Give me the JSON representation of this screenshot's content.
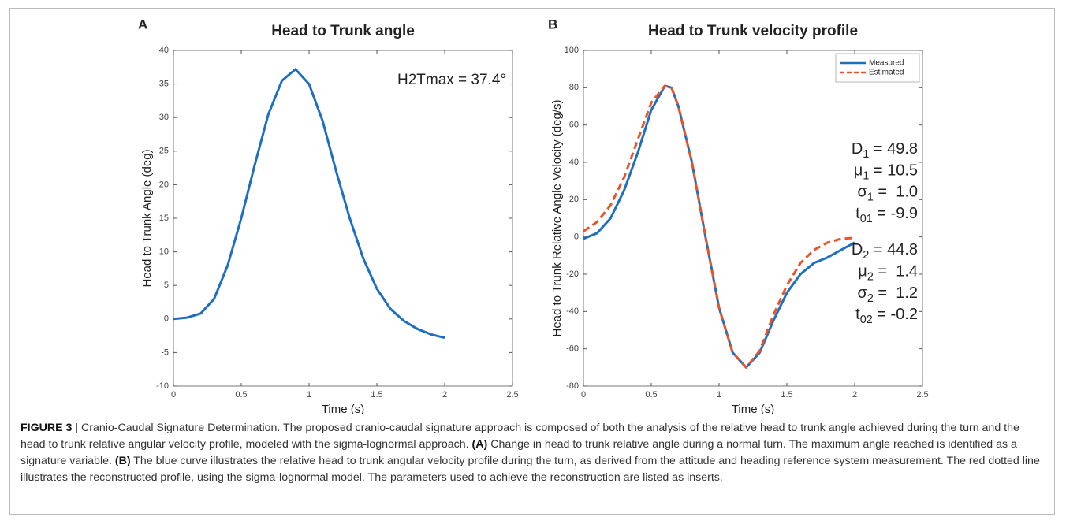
{
  "chart_data": [
    {
      "type": "line",
      "panel": "A",
      "title": "Head to Trunk angle",
      "xlabel": "Time (s)",
      "ylabel": "Head to Trunk Angle (deg)",
      "xlim": [
        0,
        2.5
      ],
      "xticks": [
        0,
        0.5,
        1,
        1.5,
        2,
        2.5
      ],
      "ylim": [
        -10,
        40
      ],
      "yticks": [
        -10,
        -5,
        0,
        5,
        10,
        15,
        20,
        25,
        30,
        35,
        40
      ],
      "x": [
        0,
        0.1,
        0.2,
        0.3,
        0.4,
        0.5,
        0.6,
        0.7,
        0.8,
        0.9,
        1.0,
        1.1,
        1.2,
        1.3,
        1.4,
        1.5,
        1.6,
        1.7,
        1.8,
        1.9,
        2.0
      ],
      "series": [
        {
          "color": "#1f6fc1",
          "dash": false,
          "values": [
            0,
            0.2,
            0.8,
            3,
            8,
            15,
            23,
            30.5,
            35.5,
            37.2,
            35,
            29.5,
            22,
            15,
            9,
            4.5,
            1.5,
            -0.3,
            -1.5,
            -2.3,
            -2.8
          ]
        }
      ],
      "annotations": [
        {
          "base": "H2Tmax = 37.4°"
        }
      ]
    },
    {
      "type": "line",
      "panel": "B",
      "title": "Head to Trunk velocity profile",
      "xlabel": "Time (s)",
      "ylabel": "Head to Trunk Relative Angle Velocity (deg/s)",
      "xlim": [
        0,
        2.5
      ],
      "xticks": [
        0,
        0.5,
        1,
        1.5,
        2,
        2.5
      ],
      "ylim": [
        -80,
        100
      ],
      "yticks": [
        -80,
        -60,
        -40,
        -20,
        0,
        20,
        40,
        60,
        80,
        100
      ],
      "legend": "northeast",
      "x": [
        0,
        0.1,
        0.2,
        0.3,
        0.4,
        0.5,
        0.6,
        0.65,
        0.7,
        0.8,
        0.9,
        1.0,
        1.1,
        1.2,
        1.3,
        1.4,
        1.5,
        1.6,
        1.7,
        1.8,
        1.9,
        2.0
      ],
      "series": [
        {
          "name": "Measured",
          "color": "#1f6fc1",
          "dash": false,
          "values": [
            -1,
            2,
            10,
            25,
            45,
            68,
            81,
            80,
            70,
            40,
            0,
            -38,
            -62,
            -70,
            -62,
            -45,
            -30,
            -20,
            -14,
            -11,
            -7,
            -3
          ]
        },
        {
          "name": "Estimated",
          "color": "#e8532a",
          "dash": true,
          "values": [
            3,
            8,
            17,
            32,
            52,
            72,
            81,
            80,
            70,
            40,
            0,
            -38,
            -62,
            -70,
            -61,
            -42,
            -26,
            -14,
            -7,
            -3,
            -1,
            -0.5
          ]
        }
      ],
      "annotations": [
        {
          "base": "D",
          "sub": "1",
          "text": " = 49.8"
        },
        {
          "base": "μ",
          "sub": "1",
          "text": " = 10.5"
        },
        {
          "base": "σ",
          "sub": "1",
          "text": " =  1.0"
        },
        {
          "base": "t",
          "sub": "01",
          "text": " = -9.9"
        },
        {
          "base": "D",
          "sub": "2",
          "text": " = 44.8"
        },
        {
          "base": "μ",
          "sub": "2",
          "text": " =  1.4"
        },
        {
          "base": "σ",
          "sub": "2",
          "text": " =  1.2"
        },
        {
          "base": "t",
          "sub": "02",
          "text": " = -0.2"
        }
      ]
    }
  ],
  "caption": {
    "label": "FIGURE 3",
    "intro": " | Cranio-Caudal Signature Determination. The proposed cranio-caudal signature approach is composed of both the analysis of the relative head to trunk angle achieved during the turn and the head to trunk relative angular velocity profile, modeled with the sigma-lognormal approach. ",
    "a_label": "(A)",
    "a_text": " Change in head to trunk relative angle during a normal turn. The maximum angle reached is identified as a signature variable. ",
    "b_label": "(B)",
    "b_text": " The blue curve illustrates the relative head to trunk angular velocity profile during the turn, as derived from the attitude and heading reference system measurement. The red dotted line illustrates the reconstructed profile, using the sigma-lognormal model. The parameters used to achieve the reconstruction are listed as inserts."
  }
}
